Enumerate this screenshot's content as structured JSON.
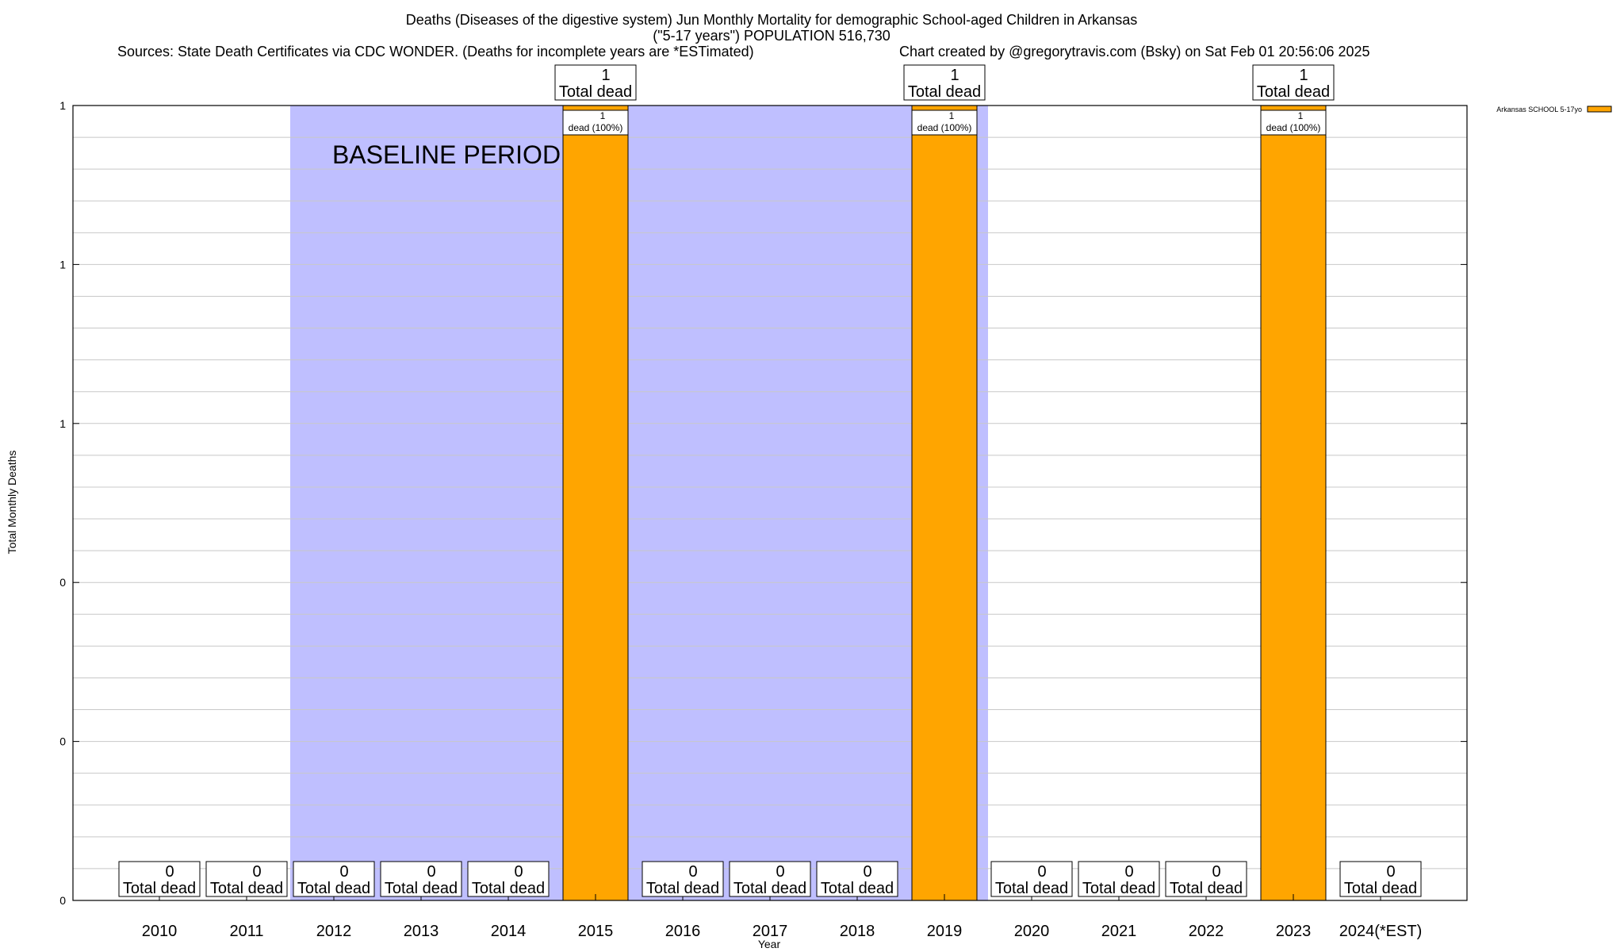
{
  "chart_data": {
    "type": "bar",
    "title_lines": [
      "Deaths (Diseases of the digestive system) Jun Monthly Mortality for demographic School-aged Children in Arkansas",
      "(\"5-17 years\") POPULATION 516,730"
    ],
    "sources_text": "Sources: State Death Certificates via CDC WONDER. (Deaths for incomplete years are *ESTimated)",
    "credit_text": "Chart created by @gregorytravis.com (Bsky) on Sat Feb 01 20:56:06 2025",
    "xlabel": "Year",
    "ylabel": "Total Monthly Deaths",
    "categories": [
      "2010",
      "2011",
      "2012",
      "2013",
      "2014",
      "2015",
      "2016",
      "2017",
      "2018",
      "2019",
      "2020",
      "2021",
      "2022",
      "2023",
      "2024(*EST)"
    ],
    "series": [
      {
        "name": "Arkansas SCHOOL 5-17yo",
        "color": "#ffa500",
        "values": [
          0,
          0,
          0,
          0,
          0,
          1,
          0,
          0,
          0,
          1,
          0,
          0,
          0,
          1,
          0
        ]
      }
    ],
    "bar_labels": [
      "",
      "",
      "",
      "",
      "",
      "1\ndead (100%)",
      "",
      "",
      "",
      "1\ndead (100%)",
      "",
      "",
      "",
      "1\ndead (100%)",
      ""
    ],
    "total_labels": [
      "0\nTotal dead",
      "0\nTotal dead",
      "0\nTotal dead",
      "0\nTotal dead",
      "0\nTotal dead",
      "1\nTotal dead",
      "0\nTotal dead",
      "0\nTotal dead",
      "0\nTotal dead",
      "1\nTotal dead",
      "0\nTotal dead",
      "0\nTotal dead",
      "0\nTotal dead",
      "1\nTotal dead",
      "0\nTotal dead"
    ],
    "ylim": [
      0,
      1
    ],
    "y_ticks": [
      {
        "value": 0,
        "label": "0"
      },
      {
        "value": 0.2,
        "label": "0"
      },
      {
        "value": 0.4,
        "label": "0"
      },
      {
        "value": 0.6,
        "label": "1"
      },
      {
        "value": 0.8,
        "label": "1"
      },
      {
        "value": 1.0,
        "label": "1"
      }
    ],
    "y_minor_step": 0.04,
    "grid": true,
    "baseline_period": {
      "label": "BASELINE PERIOD",
      "start_year": 2011.5,
      "end_year": 2019.5,
      "color": "#bfbfff"
    },
    "legend_position": "top-right"
  }
}
